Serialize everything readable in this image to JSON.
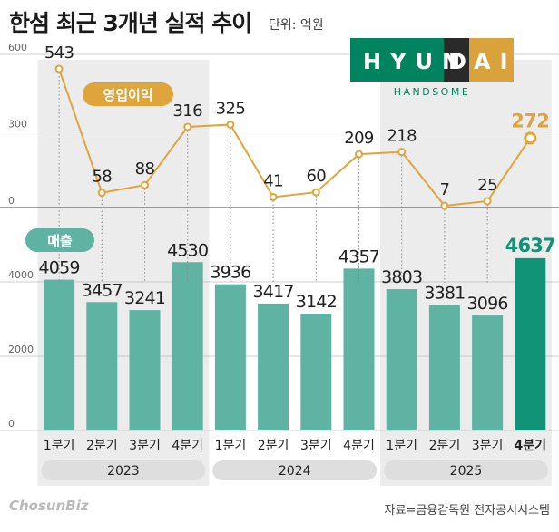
{
  "header": {
    "title": "한섬 최근 3개년 실적 추이",
    "unit": "단위: 억원"
  },
  "logo": {
    "main_left": "HYUN",
    "main_highlight": "D",
    "main_right": "AI",
    "sub": "HANDSOME",
    "colors": {
      "green": "#00835f",
      "dark": "#2a2a2a",
      "gold": "#d9a23a"
    }
  },
  "footer": {
    "brand": "ChosunBiz",
    "source": "자료=금융감독원 전자공시시스템"
  },
  "colors": {
    "line": "#e0a43c",
    "bar": "#5fb3a3",
    "bar_highlight": "#109376",
    "shade": "#ececec",
    "year_pill": "#dedede"
  },
  "chart_data": {
    "type": "bar+line",
    "categories": [
      "1분기",
      "2분기",
      "3분기",
      "4분기",
      "1분기",
      "2분기",
      "3분기",
      "4분기",
      "1분기",
      "2분기",
      "3분기",
      "4분기"
    ],
    "groups": [
      {
        "label": "2023",
        "start": 0,
        "end": 3
      },
      {
        "label": "2024",
        "start": 4,
        "end": 7
      },
      {
        "label": "2025",
        "start": 8,
        "end": 11
      }
    ],
    "series": [
      {
        "name": "영업이익",
        "type": "line",
        "values": [
          543,
          58,
          88,
          316,
          325,
          41,
          60,
          209,
          218,
          7,
          25,
          272
        ],
        "yticks": [
          600,
          300,
          0
        ]
      },
      {
        "name": "매출",
        "type": "bar",
        "values": [
          4059,
          3457,
          3241,
          4530,
          3936,
          3417,
          3142,
          4357,
          3803,
          3381,
          3096,
          4637
        ],
        "yticks": [
          4000,
          2000,
          0
        ]
      }
    ],
    "highlight_index": 11
  }
}
